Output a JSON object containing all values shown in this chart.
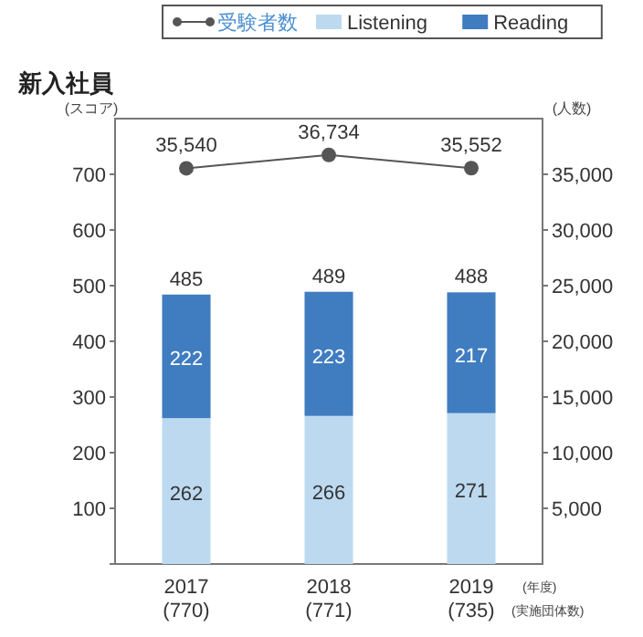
{
  "chart_data": {
    "type": "bar",
    "title": "新入社員",
    "ylabel": "(スコア)",
    "y2label": "(人数)",
    "xlabel": "(年度)\n(実施団体数)",
    "categories": [
      "2017\n(770)",
      "2018\n(771)",
      "2019\n(735)"
    ],
    "series": [
      {
        "name": "受験者数",
        "type": "line",
        "axis": "y2",
        "color": "#555555",
        "values": [
          35540,
          36734,
          35552
        ],
        "value_labels": [
          "35,540",
          "36,734",
          "35,552"
        ]
      },
      {
        "name": "Listening",
        "color": "#bcd9f0",
        "values": [
          262,
          266,
          271
        ]
      },
      {
        "name": "Reading",
        "color": "#3f7cc0",
        "values": [
          222,
          223,
          217
        ]
      }
    ],
    "stacked": true,
    "totals": [
      "485",
      "489",
      "488"
    ],
    "data_labels": true,
    "ylim": [
      0,
      800
    ],
    "yticks": [
      {
        "value": 0,
        "label": null
      },
      100,
      200,
      300,
      400,
      500,
      600,
      700
    ],
    "y2lim": [
      0,
      40000
    ],
    "y2ticks": [
      {
        "value": 5000,
        "label": "5,000"
      },
      {
        "value": 10000,
        "label": "10,000"
      },
      {
        "value": 15000,
        "label": "15,000"
      },
      {
        "value": 20000,
        "label": "20,000"
      },
      {
        "value": 25000,
        "label": "25,000"
      },
      {
        "value": 30000,
        "label": "30,000"
      },
      {
        "value": 35000,
        "label": "35,000"
      }
    ],
    "legend": "top",
    "marker": "circle"
  }
}
